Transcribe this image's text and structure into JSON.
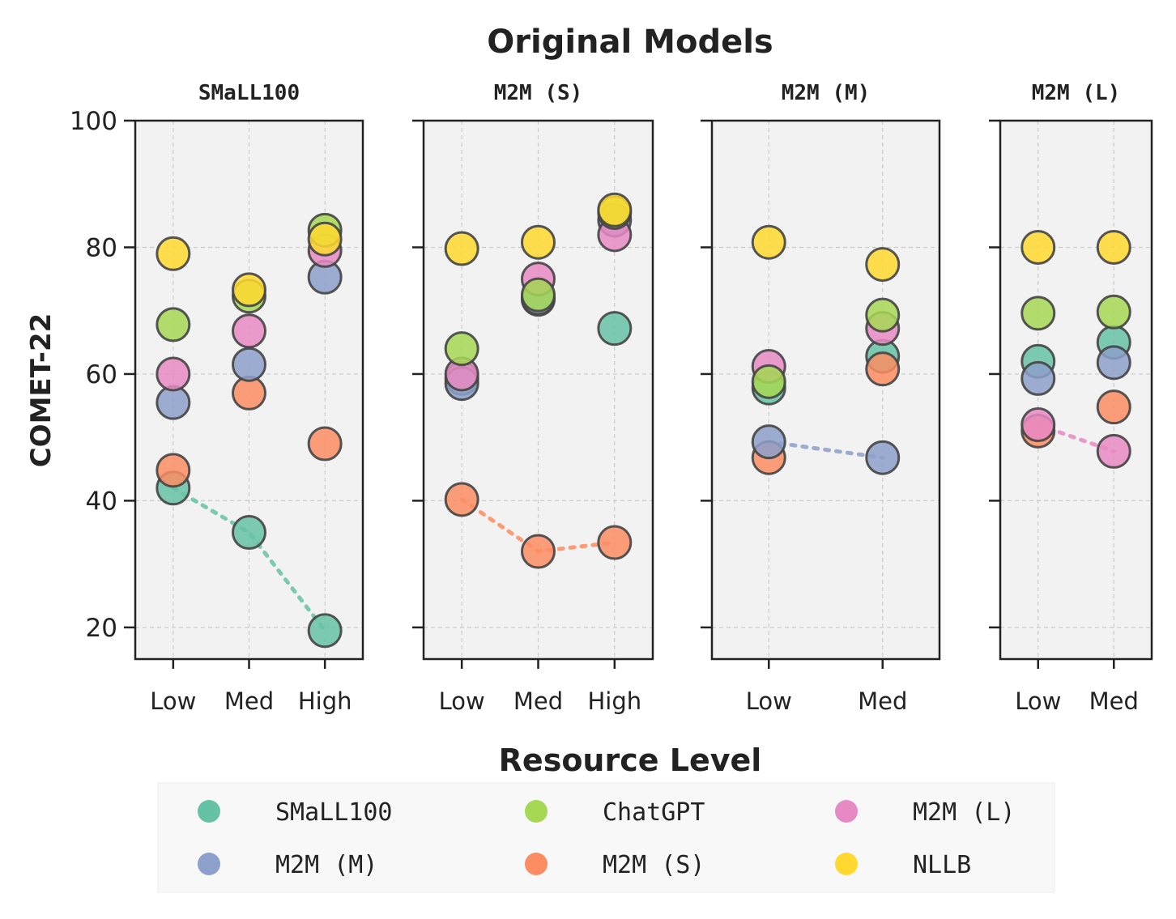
{
  "chart_data": {
    "type": "scatter",
    "title": "Original Models",
    "xlabel": "Resource Level",
    "ylabel": "COMET-22",
    "ylim": [
      15,
      100
    ],
    "yticks": [
      20,
      40,
      60,
      80,
      100
    ],
    "grid": true,
    "legend_position": "bottom",
    "series_names": [
      "SMaLL100",
      "M2M (S)",
      "M2M (M)",
      "M2M (L)",
      "ChatGPT",
      "NLLB"
    ],
    "series_colors": {
      "SMaLL100": "#66c2a5",
      "M2M (S)": "#fc8d62",
      "M2M (M)": "#8da0cb",
      "M2M (L)": "#e78ac3",
      "ChatGPT": "#a6d854",
      "NLLB": "#ffd92f"
    },
    "legend": [
      "SMaLL100",
      "M2M (M)",
      "ChatGPT",
      "M2M (S)",
      "M2M (L)",
      "NLLB"
    ],
    "panels": [
      {
        "title": "SMaLL100",
        "categories": [
          "Low",
          "Med",
          "High"
        ],
        "highlight": "SMaLL100",
        "series": [
          {
            "name": "SMaLL100",
            "values": [
              42,
              35,
              19.5
            ]
          },
          {
            "name": "M2M (S)",
            "values": [
              44.8,
              57,
              49
            ]
          },
          {
            "name": "M2M (M)",
            "values": [
              55.5,
              61.5,
              75.3
            ]
          },
          {
            "name": "M2M (L)",
            "values": [
              60,
              66.8,
              79.5
            ]
          },
          {
            "name": "ChatGPT",
            "values": [
              67.8,
              72.3,
              82.7
            ]
          },
          {
            "name": "NLLB",
            "values": [
              79,
              73.3,
              81.3
            ]
          }
        ]
      },
      {
        "title": "M2M (S)",
        "categories": [
          "Low",
          "Med",
          "High"
        ],
        "highlight": "M2M (S)",
        "series": [
          {
            "name": "SMaLL100",
            "values": [
              59.3,
              71.8,
              67.2
            ]
          },
          {
            "name": "M2M (S)",
            "values": [
              40.2,
              32,
              33.4
            ]
          },
          {
            "name": "M2M (M)",
            "values": [
              58.5,
              72,
              84.3
            ]
          },
          {
            "name": "M2M (L)",
            "values": [
              60,
              75,
              82
            ]
          },
          {
            "name": "ChatGPT",
            "values": [
              64,
              72.5,
              85.5
            ]
          },
          {
            "name": "NLLB",
            "values": [
              79.8,
              80.8,
              85.9
            ]
          }
        ]
      },
      {
        "title": "M2M (M)",
        "categories": [
          "Low",
          "Med"
        ],
        "highlight": "M2M (M)",
        "series": [
          {
            "name": "SMaLL100",
            "values": [
              57.8,
              62.8
            ]
          },
          {
            "name": "M2M (S)",
            "values": [
              46.8,
              60.8
            ]
          },
          {
            "name": "M2M (M)",
            "values": [
              49.3,
              46.8
            ]
          },
          {
            "name": "M2M (L)",
            "values": [
              61.2,
              67.2
            ]
          },
          {
            "name": "ChatGPT",
            "values": [
              58.8,
              69.3
            ]
          },
          {
            "name": "NLLB",
            "values": [
              80.8,
              77.3
            ]
          }
        ]
      },
      {
        "title": "M2M (L)",
        "categories": [
          "Low",
          "Med"
        ],
        "highlight": "M2M (L)",
        "series": [
          {
            "name": "SMaLL100",
            "values": [
              62,
              65
            ]
          },
          {
            "name": "M2M (S)",
            "values": [
              51,
              54.8
            ]
          },
          {
            "name": "M2M (M)",
            "values": [
              59.3,
              61.8
            ]
          },
          {
            "name": "M2M (L)",
            "values": [
              52,
              47.8
            ]
          },
          {
            "name": "ChatGPT",
            "values": [
              69.6,
              69.8
            ]
          },
          {
            "name": "NLLB",
            "values": [
              80,
              80
            ]
          }
        ]
      }
    ]
  }
}
